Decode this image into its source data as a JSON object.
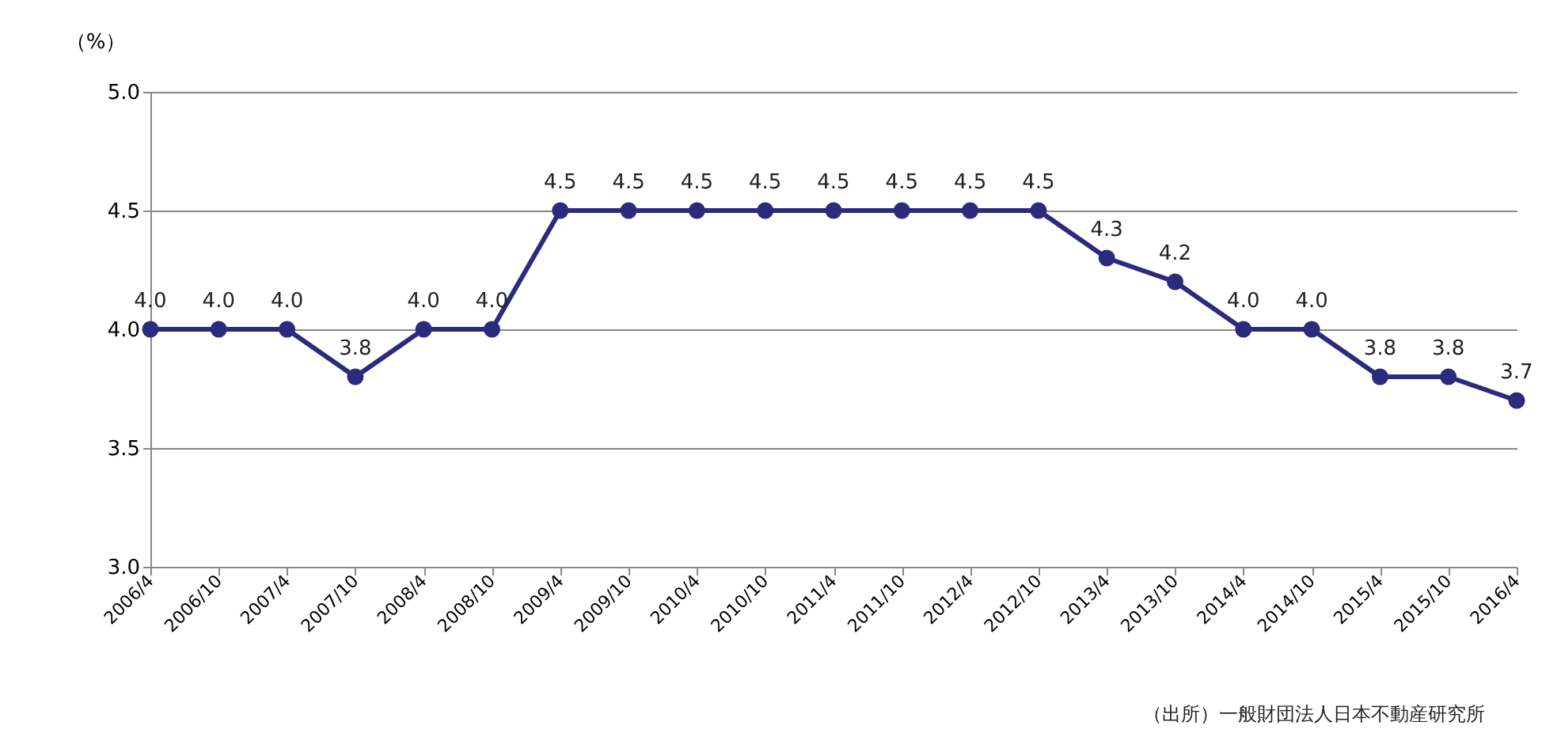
{
  "chart_data": {
    "type": "line",
    "ylabel": "（%）",
    "categories": [
      "2006/4",
      "2006/10",
      "2007/4",
      "2007/10",
      "2008/4",
      "2008/10",
      "2009/4",
      "2009/10",
      "2010/4",
      "2010/10",
      "2011/4",
      "2011/10",
      "2012/4",
      "2012/10",
      "2013/4",
      "2013/10",
      "2014/4",
      "2014/10",
      "2015/4",
      "2015/10",
      "2016/4"
    ],
    "series": [
      {
        "color": "#2b2a7c",
        "values": [
          4.0,
          4.0,
          4.0,
          3.8,
          4.0,
          4.0,
          4.5,
          4.5,
          4.5,
          4.5,
          4.5,
          4.5,
          4.5,
          4.5,
          4.3,
          4.2,
          4.0,
          4.0,
          3.8,
          3.8,
          3.7
        ],
        "value_labels": [
          "4.0",
          "4.0",
          "4.0",
          "3.8",
          "4.0",
          "4.0",
          "4.5",
          "4.5",
          "4.5",
          "4.5",
          "4.5",
          "4.5",
          "4.5",
          "4.5",
          "4.3",
          "4.2",
          "4.0",
          "4.0",
          "3.8",
          "3.8",
          "3.7"
        ]
      }
    ],
    "ylim": [
      3.0,
      5.0
    ],
    "yticks": [
      {
        "value": 3,
        "label": "3.0"
      },
      3.5,
      {
        "value": 4,
        "label": "4.0"
      },
      4.5,
      {
        "value": 5,
        "label": "5.0"
      }
    ],
    "grid": "y",
    "marker": "circle",
    "line_style": "solid",
    "annotations": [
      "（出所）一般財団法人日本不動産研究所"
    ]
  }
}
